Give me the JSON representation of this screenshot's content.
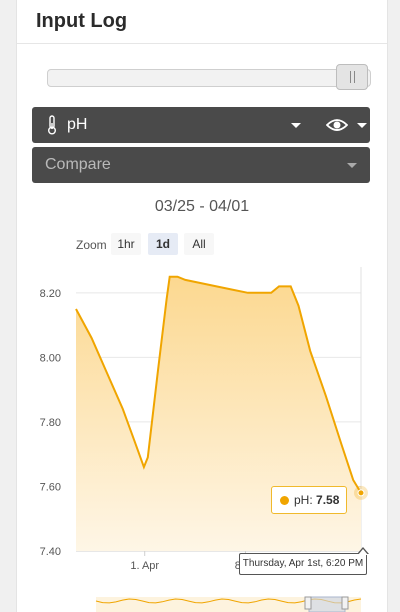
{
  "header": {
    "title": "Input Log"
  },
  "measure_select": {
    "value": "pH",
    "icon": "thermometer-icon"
  },
  "visibility_select": {
    "icon": "eye-icon"
  },
  "compare_select": {
    "placeholder": "Compare"
  },
  "date_range": "03/25 - 04/01",
  "zoom": {
    "label": "Zoom",
    "options": [
      "1hr",
      "1d",
      "All"
    ],
    "active": "1d"
  },
  "tooltip": {
    "series": "pH",
    "value": "7.58",
    "date": "Thursday, Apr 1st, 6:20 PM"
  },
  "colors": {
    "line": "#f0a500",
    "fill_top": "#fcd890",
    "fill_bottom": "#fef6e6",
    "select_bg": "#4a4a4a"
  },
  "chart_data": {
    "type": "area",
    "y_ticks": [
      "7.40",
      "7.60",
      "7.80",
      "8.00",
      "8.20"
    ],
    "x_ticks": [
      "1. Apr",
      "8:00"
    ],
    "ylim": [
      7.4,
      8.28
    ],
    "grid": true,
    "points": [
      [
        0.0,
        8.15
      ],
      [
        2.0,
        8.06
      ],
      [
        4.0,
        7.95
      ],
      [
        6.0,
        7.84
      ],
      [
        7.5,
        7.74
      ],
      [
        8.7,
        7.66
      ],
      [
        9.2,
        7.69
      ],
      [
        10.5,
        7.96
      ],
      [
        11.6,
        8.18
      ],
      [
        12.0,
        8.25
      ],
      [
        13.0,
        8.25
      ],
      [
        14.0,
        8.24
      ],
      [
        16.0,
        8.23
      ],
      [
        18.0,
        8.22
      ],
      [
        20.0,
        8.21
      ],
      [
        22.0,
        8.2
      ],
      [
        23.5,
        8.2
      ],
      [
        25.0,
        8.2
      ],
      [
        26.0,
        8.22
      ],
      [
        27.5,
        8.22
      ],
      [
        28.5,
        8.16
      ],
      [
        30.0,
        8.02
      ],
      [
        32.0,
        7.88
      ],
      [
        34.0,
        7.73
      ],
      [
        35.5,
        7.62
      ],
      [
        36.5,
        7.58
      ]
    ],
    "x_tick_positions": [
      8.8,
      21.7
    ],
    "tooltip_index": 25
  }
}
